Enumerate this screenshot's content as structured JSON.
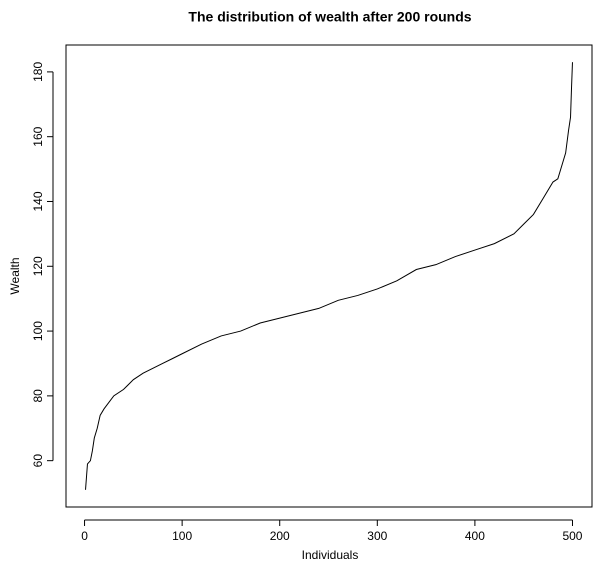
{
  "chart_data": {
    "type": "line",
    "title": "The distribution of wealth after 200 rounds",
    "x_label": "Individuals",
    "y_label": "Wealth",
    "x": [
      1,
      2,
      3,
      6,
      8,
      10,
      13,
      16,
      20,
      25,
      30,
      40,
      50,
      60,
      70,
      80,
      90,
      100,
      120,
      140,
      160,
      180,
      200,
      220,
      240,
      260,
      280,
      300,
      320,
      340,
      360,
      380,
      400,
      420,
      440,
      450,
      460,
      470,
      480,
      485,
      490,
      493,
      496,
      498,
      499,
      500
    ],
    "values": [
      51,
      55,
      59,
      60,
      63,
      67,
      70,
      74,
      76,
      78,
      80,
      82,
      85,
      87,
      88.5,
      90,
      91.5,
      93,
      96,
      98.5,
      100,
      102.5,
      104,
      105.5,
      107,
      109.5,
      111,
      113,
      115.5,
      119,
      120.5,
      123,
      125,
      127,
      130,
      133,
      136,
      141,
      146,
      147,
      152,
      155,
      162,
      166,
      175,
      183
    ],
    "color": "#000000",
    "xlim": [
      -19,
      520
    ],
    "ylim": [
      45.7,
      188.3
    ],
    "xticks": [
      0,
      100,
      200,
      300,
      400,
      500
    ],
    "yticks": [
      60,
      80,
      100,
      120,
      140,
      160,
      180
    ]
  }
}
